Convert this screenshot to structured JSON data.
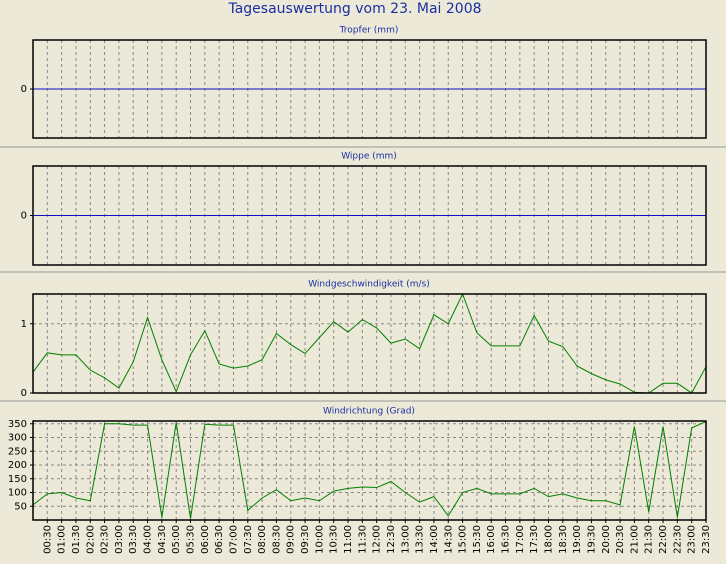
{
  "title": "Tagesauswertung vom 23. Mai 2008",
  "chart_data": [
    {
      "type": "line",
      "title": "Tropfer (mm)",
      "ylim": [
        -1,
        1
      ],
      "yticks": [
        0
      ],
      "grid": true,
      "series": [
        {
          "color": "#1010c0",
          "values": [
            0,
            0,
            0,
            0,
            0,
            0,
            0,
            0,
            0,
            0,
            0,
            0,
            0,
            0,
            0,
            0,
            0,
            0,
            0,
            0,
            0,
            0,
            0,
            0,
            0,
            0,
            0,
            0,
            0,
            0,
            0,
            0,
            0,
            0,
            0,
            0,
            0,
            0,
            0,
            0,
            0,
            0,
            0,
            0,
            0,
            0,
            0,
            0
          ]
        }
      ]
    },
    {
      "type": "line",
      "title": "Wippe (mm)",
      "ylim": [
        -1,
        1
      ],
      "yticks": [
        0
      ],
      "grid": true,
      "series": [
        {
          "color": "#1010c0",
          "values": [
            0,
            0,
            0,
            0,
            0,
            0,
            0,
            0,
            0,
            0,
            0,
            0,
            0,
            0,
            0,
            0,
            0,
            0,
            0,
            0,
            0,
            0,
            0,
            0,
            0,
            0,
            0,
            0,
            0,
            0,
            0,
            0,
            0,
            0,
            0,
            0,
            0,
            0,
            0,
            0,
            0,
            0,
            0,
            0,
            0,
            0,
            0,
            0
          ]
        }
      ]
    },
    {
      "type": "line",
      "title": "Windgeschwindigkeit (m/s)",
      "ylim": [
        0,
        1.43
      ],
      "yticks": [
        0,
        1
      ],
      "grid": true,
      "series": [
        {
          "color": "#008000",
          "values": [
            0.3,
            0.58,
            0.55,
            0.55,
            0.33,
            0.22,
            0.07,
            0.45,
            1.09,
            0.48,
            0.02,
            0.55,
            0.9,
            0.42,
            0.36,
            0.39,
            0.48,
            0.86,
            0.7,
            0.57,
            0.8,
            1.03,
            0.88,
            1.06,
            0.94,
            0.72,
            0.78,
            0.64,
            1.13,
            1.0,
            1.43,
            0.87,
            0.68,
            0.68,
            0.68,
            1.12,
            0.75,
            0.67,
            0.39,
            0.28,
            0.19,
            0.13,
            0.01,
            0,
            0.14,
            0.14,
            0,
            0.38
          ]
        }
      ]
    },
    {
      "type": "line",
      "title": "Windrichtung (Grad)",
      "ylim": [
        0,
        360
      ],
      "yticks": [
        50,
        100,
        150,
        200,
        250,
        300,
        350
      ],
      "grid": true,
      "categories": [
        null,
        "00:30",
        "01:00",
        "01:30",
        "02:00",
        "02:30",
        "03:00",
        "03:30",
        "04:00",
        "04:30",
        "05:00",
        "05:30",
        "06:00",
        "06:30",
        "07:00",
        "07:30",
        "08:00",
        "08:30",
        "09:00",
        "09:30",
        "10:00",
        "10:30",
        "11:00",
        "11:30",
        "12:00",
        "12:30",
        "13:00",
        "13:30",
        "14:00",
        "14:30",
        "15:00",
        "15:30",
        "16:00",
        "16:30",
        "17:00",
        "17:30",
        "18:00",
        "18:30",
        "19:00",
        "19:30",
        "20:00",
        "20:30",
        "21:00",
        "21:30",
        "22:00",
        "22:30",
        "23:00",
        "23:30"
      ],
      "series": [
        {
          "color": "#008000",
          "values": [
            55,
            95,
            100,
            80,
            70,
            350,
            350,
            345,
            345,
            10,
            355,
            5,
            348,
            345,
            345,
            35,
            80,
            110,
            70,
            80,
            70,
            105,
            115,
            120,
            118,
            140,
            100,
            65,
            85,
            15,
            100,
            115,
            95,
            95,
            95,
            115,
            85,
            95,
            80,
            70,
            70,
            55,
            340,
            30,
            340,
            10,
            335,
            358
          ]
        }
      ]
    }
  ]
}
